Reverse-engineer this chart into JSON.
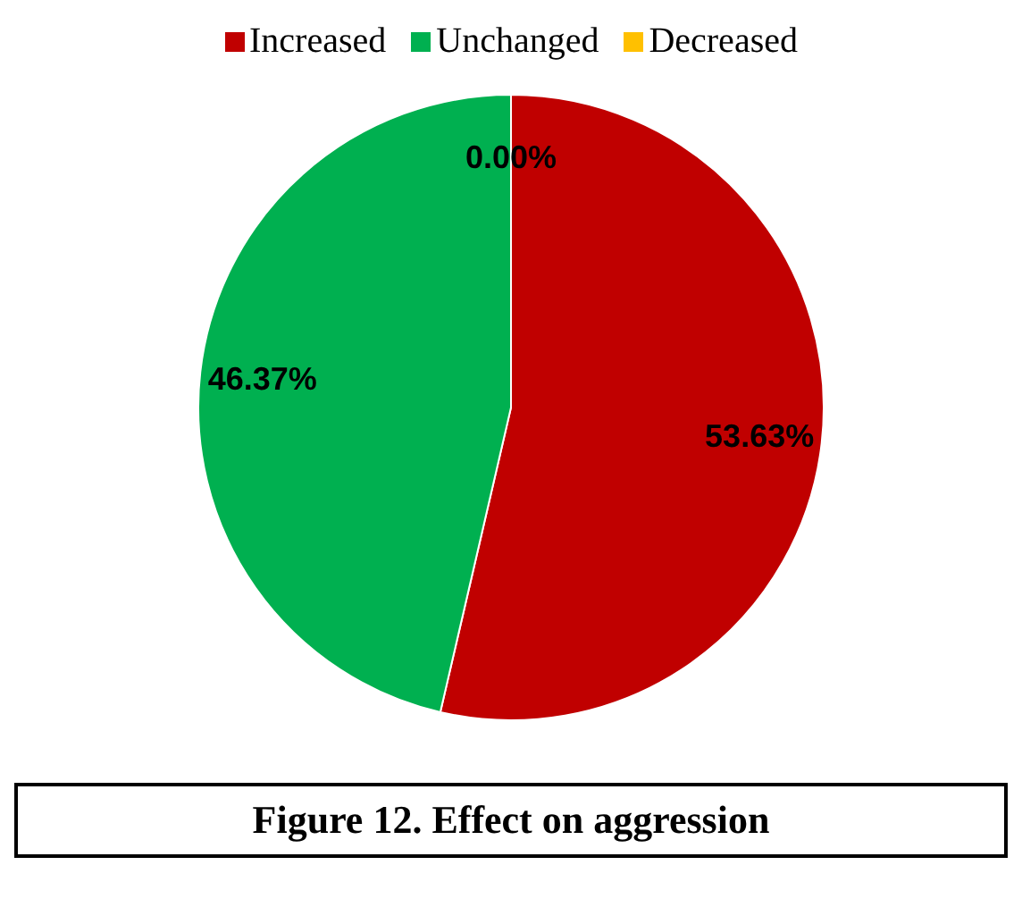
{
  "chart_data": {
    "type": "pie",
    "categories": [
      "Increased",
      "Unchanged",
      "Decreased"
    ],
    "values": [
      53.63,
      46.37,
      0
    ],
    "colors": [
      "#c00000",
      "#00b050",
      "#ffc000"
    ],
    "value_labels": [
      "53.63%",
      "46.37%",
      "0.00%"
    ],
    "legend": "top",
    "annotations": [
      "Figure 12. Effect on aggression"
    ]
  }
}
